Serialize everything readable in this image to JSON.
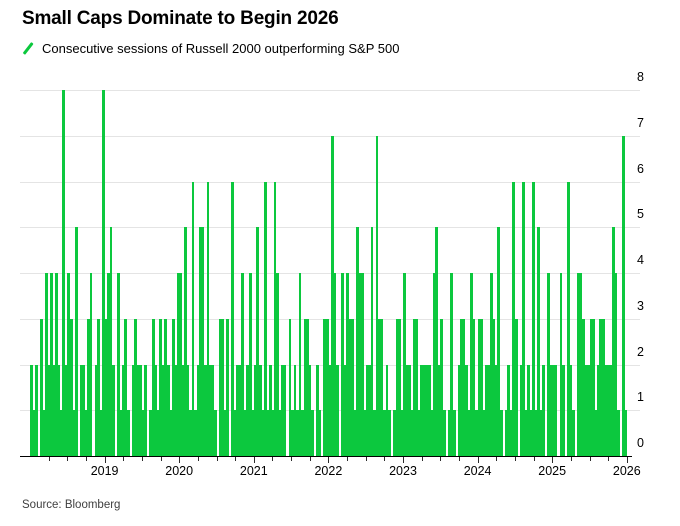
{
  "header": {
    "title": "Small Caps Dominate to Begin 2026"
  },
  "legend": {
    "label": "Consecutive sessions of Russell 2000 outperforming S&P 500",
    "marker_color": "#0cc83e"
  },
  "source": {
    "label": "Source: Bloomberg"
  },
  "colors": {
    "bar_green": "#0cc83e",
    "gridline": "#e4e4e4",
    "axis": "#000000",
    "source_text": "#3f3f3f"
  },
  "chart_data": {
    "type": "bar",
    "title": "Small Caps Dominate to Begin 2026",
    "series_name": "Consecutive sessions of Russell 2000 outperforming S&P 500",
    "xlabel": "",
    "ylabel": "Consecutive sessions",
    "x_start_year": 2018,
    "x_end_year": 2026,
    "bins_per_year": 30,
    "x_tick_labels": [
      "2019",
      "2020",
      "2021",
      "2022",
      "2023",
      "2024",
      "2025",
      "2026"
    ],
    "y_ticks": [
      0,
      1,
      2,
      3,
      4,
      5,
      6,
      7,
      8
    ],
    "ylim": [
      0,
      8
    ],
    "grid": true,
    "y_axis_side": "right",
    "bar_color": "#0cc83e",
    "grid_color": "#e4e4e4",
    "notable_peaks": [
      {
        "year_approx": "mid-2018",
        "value": 8
      },
      {
        "year_approx": "late-2018",
        "value": 8
      },
      {
        "year_approx": "early-2022",
        "value": 7
      },
      {
        "year_approx": "late-2022",
        "value": 7
      },
      {
        "year_approx": "begin-2026",
        "value": 7
      },
      {
        "year_approx": "2020",
        "value": 6
      },
      {
        "year_approx": "2021",
        "value": 6
      },
      {
        "year_approx": "mid-2024",
        "value": 6
      },
      {
        "year_approx": "2025",
        "value": 6
      }
    ],
    "values": [
      2,
      1,
      2,
      0,
      3,
      1,
      4,
      2,
      4,
      2,
      4,
      2,
      1,
      8,
      2,
      4,
      3,
      1,
      5,
      0,
      2,
      2,
      1,
      3,
      4,
      0,
      2,
      3,
      1,
      8,
      3,
      4,
      5,
      2,
      0,
      4,
      1,
      2,
      3,
      1,
      0,
      2,
      3,
      2,
      2,
      1,
      2,
      0,
      1,
      3,
      2,
      1,
      3,
      2,
      3,
      2,
      1,
      3,
      2,
      4,
      4,
      2,
      5,
      2,
      1,
      6,
      1,
      2,
      5,
      5,
      2,
      6,
      2,
      2,
      1,
      0,
      3,
      3,
      1,
      3,
      0,
      6,
      1,
      2,
      2,
      4,
      1,
      2,
      4,
      1,
      2,
      5,
      2,
      1,
      6,
      1,
      2,
      1,
      6,
      4,
      1,
      2,
      2,
      0,
      3,
      1,
      2,
      1,
      4,
      1,
      3,
      3,
      2,
      1,
      0,
      2,
      1,
      0,
      3,
      3,
      2,
      7,
      4,
      2,
      0,
      4,
      2,
      4,
      3,
      3,
      1,
      5,
      4,
      4,
      1,
      2,
      2,
      5,
      1,
      7,
      3,
      3,
      1,
      2,
      1,
      0,
      1,
      3,
      3,
      1,
      4,
      2,
      2,
      1,
      3,
      3,
      1,
      2,
      2,
      2,
      2,
      1,
      4,
      5,
      2,
      3,
      1,
      0,
      1,
      4,
      1,
      0,
      2,
      3,
      3,
      2,
      1,
      4,
      3,
      1,
      3,
      3,
      1,
      2,
      2,
      4,
      3,
      2,
      5,
      1,
      0,
      1,
      2,
      1,
      6,
      3,
      0,
      2,
      6,
      1,
      2,
      1,
      6,
      1,
      5,
      1,
      2,
      0,
      4,
      2,
      2,
      2,
      0,
      4,
      2,
      0,
      6,
      2,
      1,
      0,
      4,
      4,
      3,
      2,
      2,
      3,
      3,
      1,
      2,
      3,
      3,
      2,
      2,
      2,
      5,
      4,
      1,
      0,
      7,
      1
    ]
  }
}
